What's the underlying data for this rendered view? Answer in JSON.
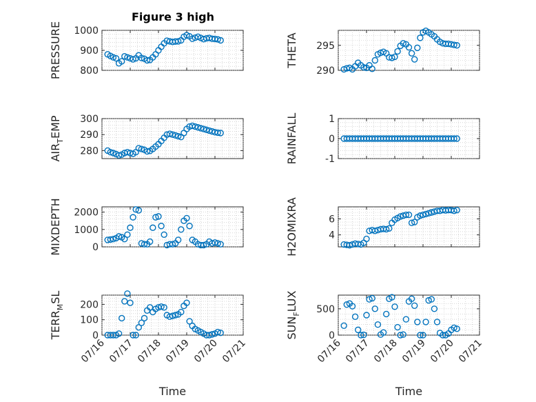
{
  "figure_title": "Figure 3 high",
  "colors": {
    "marker": "#0072bd",
    "axis": "#262626",
    "grid": "#bdbdbd"
  },
  "chart_data": [
    {
      "type": "scatter",
      "id": "pressure",
      "title": "Figure 3 high",
      "ylabel": "PRESSURE",
      "xlabel": "",
      "marker": "circle",
      "ylim": [
        800,
        1000
      ],
      "yticks": [
        "800",
        "900",
        "1000"
      ],
      "ytick_values": [
        800,
        900,
        1000
      ],
      "xlim": [
        16,
        21
      ],
      "show_xticklabels": false,
      "grid": true,
      "x": [
        16.2,
        16.3,
        16.4,
        16.5,
        16.6,
        16.7,
        16.8,
        16.9,
        17.0,
        17.1,
        17.2,
        17.3,
        17.4,
        17.5,
        17.6,
        17.7,
        17.8,
        17.9,
        18.0,
        18.1,
        18.2,
        18.3,
        18.4,
        18.5,
        18.6,
        18.7,
        18.8,
        18.9,
        19.0,
        19.1,
        19.2,
        19.3,
        19.4,
        19.5,
        19.6,
        19.7,
        19.8,
        19.9,
        20.0,
        20.1,
        20.2
      ],
      "y": [
        880,
        872,
        865,
        860,
        835,
        845,
        870,
        865,
        860,
        855,
        860,
        875,
        862,
        858,
        850,
        852,
        865,
        880,
        900,
        918,
        935,
        948,
        945,
        942,
        944,
        945,
        950,
        968,
        976,
        970,
        958,
        963,
        968,
        962,
        956,
        960,
        962,
        958,
        957,
        955,
        950
      ]
    },
    {
      "type": "scatter",
      "id": "theta",
      "ylabel": "THETA",
      "xlabel": "",
      "marker": "circle",
      "ylim": [
        290,
        298
      ],
      "yticks": [
        "290",
        "295"
      ],
      "ytick_values": [
        290,
        295
      ],
      "xlim": [
        16,
        21
      ],
      "show_xticklabels": false,
      "grid": true,
      "x": [
        16.2,
        16.3,
        16.4,
        16.5,
        16.6,
        16.7,
        16.8,
        16.9,
        17.0,
        17.1,
        17.2,
        17.3,
        17.4,
        17.5,
        17.6,
        17.7,
        17.8,
        17.9,
        18.0,
        18.1,
        18.2,
        18.3,
        18.4,
        18.5,
        18.6,
        18.7,
        18.8,
        18.9,
        19.0,
        19.1,
        19.2,
        19.3,
        19.4,
        19.5,
        19.6,
        19.7,
        19.8,
        19.9,
        20.0,
        20.1,
        20.2
      ],
      "y": [
        290.2,
        290.4,
        290.5,
        290.2,
        290.8,
        291.5,
        291.0,
        290.6,
        290.5,
        291.0,
        290.3,
        292.0,
        293.2,
        293.5,
        293.7,
        293.4,
        292.6,
        292.5,
        292.7,
        293.8,
        294.9,
        295.4,
        295.2,
        294.6,
        293.4,
        292.2,
        294.5,
        296.5,
        297.6,
        297.9,
        297.6,
        297.2,
        296.8,
        296.2,
        295.7,
        295.4,
        295.3,
        295.3,
        295.2,
        295.1,
        295.0
      ]
    },
    {
      "type": "scatter",
      "id": "air_temp",
      "ylabel": "AIR_TEMP",
      "xlabel": "",
      "marker": "circle",
      "ylim": [
        275,
        300
      ],
      "yticks": [
        "280",
        "290",
        "300"
      ],
      "ytick_values": [
        280,
        290,
        300
      ],
      "xlim": [
        16,
        21
      ],
      "show_xticklabels": false,
      "grid": true,
      "x": [
        16.2,
        16.3,
        16.4,
        16.5,
        16.6,
        16.7,
        16.8,
        16.9,
        17.0,
        17.1,
        17.2,
        17.3,
        17.4,
        17.5,
        17.6,
        17.7,
        17.8,
        17.9,
        18.0,
        18.1,
        18.2,
        18.3,
        18.4,
        18.5,
        18.6,
        18.7,
        18.8,
        18.9,
        19.0,
        19.1,
        19.2,
        19.3,
        19.4,
        19.5,
        19.6,
        19.7,
        19.8,
        19.9,
        20.0,
        20.1,
        20.2
      ],
      "y": [
        280,
        279,
        278.5,
        277.8,
        277,
        277.5,
        278.5,
        279,
        278.5,
        278,
        279,
        281.5,
        281,
        280.5,
        279.5,
        279.8,
        281,
        282.5,
        284,
        286,
        288,
        290,
        290.5,
        290,
        289.5,
        289,
        288.5,
        291,
        293.5,
        295,
        295.5,
        295,
        294.5,
        294,
        293.5,
        293,
        292.5,
        292,
        291.5,
        291.2,
        291
      ]
    },
    {
      "type": "scatter",
      "id": "rainfall",
      "ylabel": "RAINFALL",
      "xlabel": "",
      "marker": "circle",
      "ylim": [
        -1,
        1
      ],
      "yticks": [
        "-1",
        "0",
        "1"
      ],
      "ytick_values": [
        -1,
        0,
        1
      ],
      "xlim": [
        16,
        21
      ],
      "show_xticklabels": false,
      "grid": true,
      "x": [
        16.2,
        16.3,
        16.4,
        16.5,
        16.6,
        16.7,
        16.8,
        16.9,
        17.0,
        17.1,
        17.2,
        17.3,
        17.4,
        17.5,
        17.6,
        17.7,
        17.8,
        17.9,
        18.0,
        18.1,
        18.2,
        18.3,
        18.4,
        18.5,
        18.6,
        18.7,
        18.8,
        18.9,
        19.0,
        19.1,
        19.2,
        19.3,
        19.4,
        19.5,
        19.6,
        19.7,
        19.8,
        19.9,
        20.0,
        20.1,
        20.2
      ],
      "y": [
        0,
        0,
        0,
        0,
        0,
        0,
        0,
        0,
        0,
        0,
        0,
        0,
        0,
        0,
        0,
        0,
        0,
        0,
        0,
        0,
        0,
        0,
        0,
        0,
        0,
        0,
        0,
        0,
        0,
        0,
        0,
        0,
        0,
        0,
        0,
        0,
        0,
        0,
        0,
        0,
        0
      ]
    },
    {
      "type": "scatter",
      "id": "mixdepth",
      "ylabel": "MIXDEPTH",
      "xlabel": "",
      "marker": "circle",
      "ylim": [
        0,
        2300
      ],
      "yticks": [
        "0",
        "1000",
        "2000"
      ],
      "ytick_values": [
        0,
        1000,
        2000
      ],
      "xlim": [
        16,
        21
      ],
      "show_xticklabels": false,
      "grid": true,
      "x": [
        16.2,
        16.3,
        16.4,
        16.5,
        16.6,
        16.7,
        16.8,
        16.9,
        17.0,
        17.1,
        17.2,
        17.3,
        17.4,
        17.5,
        17.6,
        17.7,
        17.8,
        17.9,
        18.0,
        18.1,
        18.2,
        18.3,
        18.4,
        18.5,
        18.6,
        18.7,
        18.8,
        18.9,
        19.0,
        19.1,
        19.2,
        19.3,
        19.4,
        19.5,
        19.6,
        19.7,
        19.8,
        19.9,
        20.0,
        20.1,
        20.2
      ],
      "y": [
        400,
        420,
        450,
        500,
        600,
        550,
        450,
        700,
        1100,
        1700,
        2150,
        2100,
        200,
        150,
        150,
        300,
        1100,
        1700,
        1750,
        1200,
        700,
        100,
        150,
        150,
        200,
        400,
        1000,
        1500,
        1650,
        1200,
        400,
        300,
        150,
        100,
        100,
        150,
        300,
        200,
        250,
        200,
        150
      ]
    },
    {
      "type": "scatter",
      "id": "h2omixra",
      "ylabel": "H2OMIXRA",
      "xlabel": "",
      "marker": "circle",
      "ylim": [
        2.5,
        7.5
      ],
      "yticks": [
        "4",
        "6"
      ],
      "ytick_values": [
        4,
        6
      ],
      "xlim": [
        16,
        21
      ],
      "show_xticklabels": false,
      "grid": true,
      "x": [
        16.2,
        16.3,
        16.4,
        16.5,
        16.6,
        16.7,
        16.8,
        16.9,
        17.0,
        17.1,
        17.2,
        17.3,
        17.4,
        17.5,
        17.6,
        17.7,
        17.8,
        17.9,
        18.0,
        18.1,
        18.2,
        18.3,
        18.4,
        18.5,
        18.6,
        18.7,
        18.8,
        18.9,
        19.0,
        19.1,
        19.2,
        19.3,
        19.4,
        19.5,
        19.6,
        19.7,
        19.8,
        19.9,
        20.0,
        20.1,
        20.2
      ],
      "y": [
        2.8,
        2.75,
        2.7,
        2.8,
        2.9,
        2.85,
        2.8,
        3.0,
        3.5,
        4.5,
        4.6,
        4.5,
        4.6,
        4.7,
        4.75,
        4.7,
        4.8,
        5.5,
        5.9,
        6.1,
        6.3,
        6.4,
        6.5,
        6.5,
        5.5,
        5.6,
        6.2,
        6.4,
        6.5,
        6.6,
        6.7,
        6.8,
        6.9,
        7.0,
        7.0,
        7.1,
        7.05,
        7.1,
        7.1,
        7.0,
        7.1
      ]
    },
    {
      "type": "scatter",
      "id": "terr_msl",
      "ylabel": "TERR_MSL",
      "xlabel": "Time",
      "marker": "circle",
      "ylim": [
        0,
        260
      ],
      "yticks": [
        "0",
        "100",
        "200"
      ],
      "ytick_values": [
        0,
        100,
        200
      ],
      "xlim": [
        16,
        21
      ],
      "show_xticklabels": true,
      "grid": true,
      "xticks": [
        "07/16",
        "07/17",
        "07/18",
        "07/19",
        "07/20",
        "07/21"
      ],
      "xtick_values": [
        16,
        17,
        18,
        19,
        20,
        21
      ],
      "x": [
        16.2,
        16.3,
        16.4,
        16.5,
        16.6,
        16.7,
        16.8,
        16.9,
        17.0,
        17.1,
        17.2,
        17.3,
        17.4,
        17.5,
        17.6,
        17.7,
        17.8,
        17.9,
        18.0,
        18.1,
        18.2,
        18.3,
        18.4,
        18.5,
        18.6,
        18.7,
        18.8,
        18.9,
        19.0,
        19.1,
        19.2,
        19.3,
        19.4,
        19.5,
        19.6,
        19.7,
        19.8,
        19.9,
        20.0,
        20.1,
        20.2
      ],
      "y": [
        0,
        0,
        0,
        0,
        10,
        110,
        220,
        270,
        210,
        0,
        0,
        50,
        80,
        110,
        160,
        180,
        150,
        170,
        180,
        185,
        180,
        130,
        120,
        125,
        130,
        135,
        150,
        190,
        210,
        90,
        60,
        40,
        30,
        20,
        10,
        0,
        0,
        5,
        10,
        20,
        15
      ]
    },
    {
      "type": "scatter",
      "id": "sun_flux",
      "ylabel": "SUN_FLUX",
      "xlabel": "Time",
      "marker": "circle",
      "ylim": [
        0,
        760
      ],
      "yticks": [
        "0",
        "500"
      ],
      "ytick_values": [
        0,
        500
      ],
      "xlim": [
        16,
        21
      ],
      "show_xticklabels": true,
      "grid": true,
      "xticks": [
        "07/16",
        "07/17",
        "07/18",
        "07/19",
        "07/20",
        "07/21"
      ],
      "xtick_values": [
        16,
        17,
        18,
        19,
        20,
        21
      ],
      "x": [
        16.2,
        16.3,
        16.4,
        16.5,
        16.6,
        16.7,
        16.8,
        16.9,
        17.0,
        17.1,
        17.2,
        17.3,
        17.4,
        17.5,
        17.6,
        17.7,
        17.8,
        17.9,
        18.0,
        18.1,
        18.2,
        18.3,
        18.4,
        18.5,
        18.6,
        18.7,
        18.8,
        18.9,
        19.0,
        19.1,
        19.2,
        19.3,
        19.4,
        19.5,
        19.6,
        19.7,
        19.8,
        19.9,
        20.0,
        20.1,
        20.2
      ],
      "y": [
        180,
        580,
        600,
        550,
        350,
        100,
        0,
        5,
        380,
        680,
        700,
        500,
        200,
        10,
        50,
        400,
        690,
        720,
        540,
        150,
        0,
        10,
        300,
        640,
        690,
        560,
        250,
        0,
        0,
        250,
        660,
        680,
        500,
        250,
        40,
        0,
        0,
        30,
        100,
        140,
        120
      ]
    }
  ]
}
